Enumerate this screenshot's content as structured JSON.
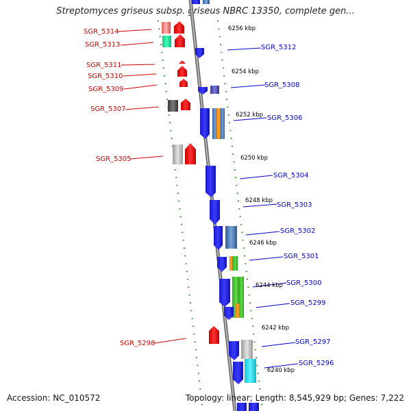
{
  "title": "Streptomyces griseus subsp. griseus NBRC 13350, complete gen...",
  "accession": "Accession: NC_010572",
  "summary": "Topology: linear; Length: 8,545,929 bp; Genes: 7,222",
  "colors": {
    "forward_label": "#cc0000",
    "reverse_label": "#0000cc",
    "backbone": "#8a8a8a",
    "tick": "#0a8a0a"
  },
  "scale_labels": [
    "6256 kbp",
    "6254 kbp",
    "6252 kbp",
    "6250 kbp",
    "6248 kbp",
    "6246 kbp",
    "6244 kbp",
    "6242 kbp",
    "6240 kbp"
  ],
  "left_genes": [
    "SGR_5314",
    "SGR_5313",
    "SGR_5311",
    "SGR_5310",
    "SGR_5309",
    "SGR_5307",
    "SGR_5305",
    "SGR_5298"
  ],
  "right_genes": [
    "SGR_5312",
    "SGR_5308",
    "SGR_5306",
    "SGR_5304",
    "SGR_5303",
    "SGR_5302",
    "SGR_5301",
    "SGR_5300",
    "SGR_5299",
    "SGR_5297",
    "SGR_5296"
  ]
}
